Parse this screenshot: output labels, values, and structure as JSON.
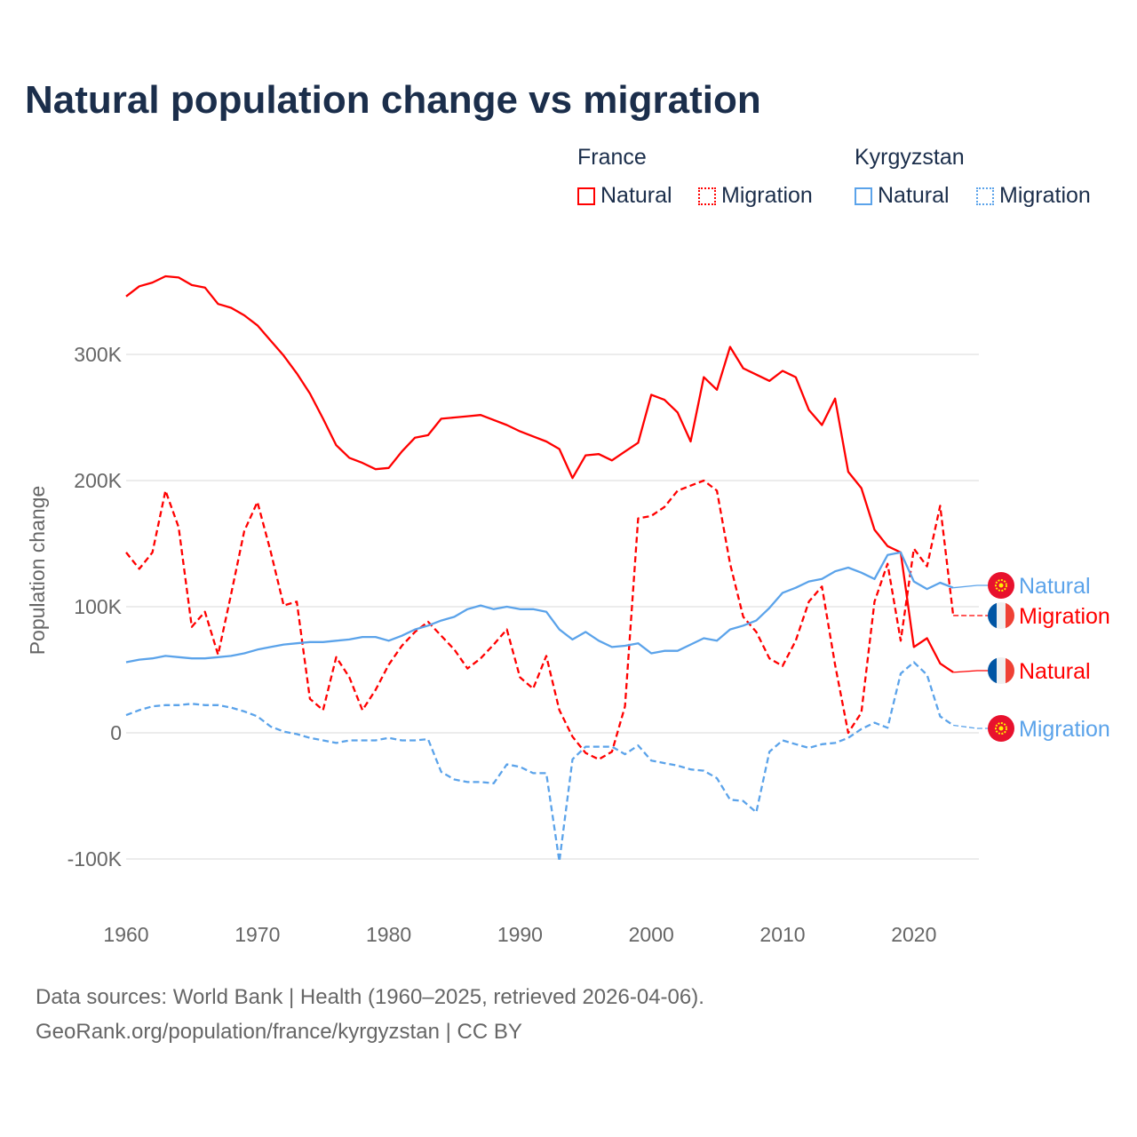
{
  "title": "Natural population change vs migration",
  "legend": {
    "groups": [
      {
        "name": "France",
        "items": [
          {
            "label": "Natural",
            "style": "solid"
          },
          {
            "label": "Migration",
            "style": "dotted"
          }
        ],
        "color": "#ff0000"
      },
      {
        "name": "Kyrgyzstan",
        "items": [
          {
            "label": "Natural",
            "style": "solid"
          },
          {
            "label": "Migration",
            "style": "dotted"
          }
        ],
        "color": "#5ba3ea"
      }
    ]
  },
  "footer": {
    "line1": "Data sources: World Bank | Health (1960–2025, retrieved 2026-04-06).",
    "line2": "GeoRank.org/population/france/kyrgyzstan | CC BY"
  },
  "chart_data": {
    "type": "line",
    "title": "Natural population change vs migration",
    "xlabel": "",
    "ylabel": "Population change",
    "xlim": [
      1960,
      2025
    ],
    "ylim": [
      -120000,
      370000
    ],
    "xticks": [
      {
        "v": 1960,
        "label": "1960"
      },
      {
        "v": 1970,
        "label": "1970"
      },
      {
        "v": 1980,
        "label": "1980"
      },
      {
        "v": 1990,
        "label": "1990"
      },
      {
        "v": 2000,
        "label": "2000"
      },
      {
        "v": 2010,
        "label": "2010"
      },
      {
        "v": 2020,
        "label": "2020"
      }
    ],
    "yticks": [
      {
        "v": 300000,
        "label": "300K"
      },
      {
        "v": 200000,
        "label": "200K"
      },
      {
        "v": 100000,
        "label": "100K"
      },
      {
        "v": 0,
        "label": "0"
      },
      {
        "v": -100000,
        "label": "-100K"
      }
    ],
    "grid": true,
    "legend_placement": "top-right",
    "x_start": 1960,
    "series": [
      {
        "name": "France Natural",
        "label": "Natural",
        "country": "France",
        "flag": "france",
        "color": "#ff0000",
        "dash": false,
        "values_k": [
          346,
          354,
          357,
          362,
          361,
          355,
          353,
          340,
          337,
          331,
          323,
          311,
          299,
          285,
          269,
          249,
          228,
          218,
          214,
          209,
          210,
          223,
          234,
          236,
          249,
          250,
          251,
          252,
          248,
          244,
          239,
          235,
          231,
          225,
          202,
          220,
          221,
          216,
          223,
          230,
          268,
          264,
          254,
          231,
          282,
          272,
          306,
          289,
          284,
          279,
          287,
          282,
          256,
          244,
          265,
          207,
          194,
          161,
          148,
          143,
          68,
          75,
          55,
          48
        ]
      },
      {
        "name": "France Migration",
        "label": "Migration",
        "country": "France",
        "flag": "france",
        "color": "#ff0000",
        "dash": true,
        "values_k": [
          143,
          130,
          143,
          192,
          163,
          84,
          96,
          62,
          110,
          160,
          183,
          144,
          101,
          104,
          27,
          18,
          60,
          44,
          18,
          34,
          54,
          69,
          80,
          88,
          77,
          66,
          51,
          59,
          70,
          82,
          44,
          35,
          61,
          18,
          -3,
          -16,
          -21,
          -15,
          21,
          170,
          172,
          179,
          192,
          196,
          200,
          192,
          134,
          92,
          80,
          59,
          53,
          73,
          104,
          116,
          54,
          0,
          16,
          104,
          134,
          73,
          146,
          132,
          180,
          93
        ]
      },
      {
        "name": "Kyrgyzstan Natural",
        "label": "Natural",
        "country": "Kyrgyzstan",
        "flag": "kyrgyzstan",
        "color": "#5ba3ea",
        "dash": false,
        "values_k": [
          56,
          58,
          59,
          61,
          60,
          59,
          59,
          60,
          61,
          63,
          66,
          68,
          70,
          71,
          72,
          72,
          73,
          74,
          76,
          76,
          73,
          77,
          82,
          85,
          89,
          92,
          98,
          101,
          98,
          100,
          98,
          98,
          96,
          82,
          74,
          80,
          73,
          68,
          69,
          71,
          63,
          65,
          65,
          70,
          75,
          73,
          82,
          85,
          89,
          99,
          111,
          115,
          120,
          122,
          128,
          131,
          127,
          122,
          141,
          143,
          120,
          114,
          119,
          115
        ]
      },
      {
        "name": "Kyrgyzstan Migration",
        "label": "Migration",
        "country": "Kyrgyzstan",
        "flag": "kyrgyzstan",
        "color": "#5ba3ea",
        "dash": true,
        "values_k": [
          14,
          18,
          21,
          22,
          22,
          23,
          22,
          22,
          20,
          17,
          13,
          5,
          1,
          -1,
          -4,
          -6,
          -8,
          -6,
          -6,
          -6,
          -4,
          -6,
          -6,
          -5,
          -31,
          -37,
          -39,
          -39,
          -40,
          -25,
          -27,
          -32,
          -32,
          -102,
          -21,
          -11,
          -11,
          -11,
          -17,
          -10,
          -22,
          -24,
          -26,
          -29,
          -30,
          -36,
          -53,
          -54,
          -63,
          -15,
          -6,
          -9,
          -12,
          -9,
          -8,
          -4,
          3,
          8,
          4,
          47,
          56,
          46,
          13,
          6
        ]
      }
    ]
  }
}
